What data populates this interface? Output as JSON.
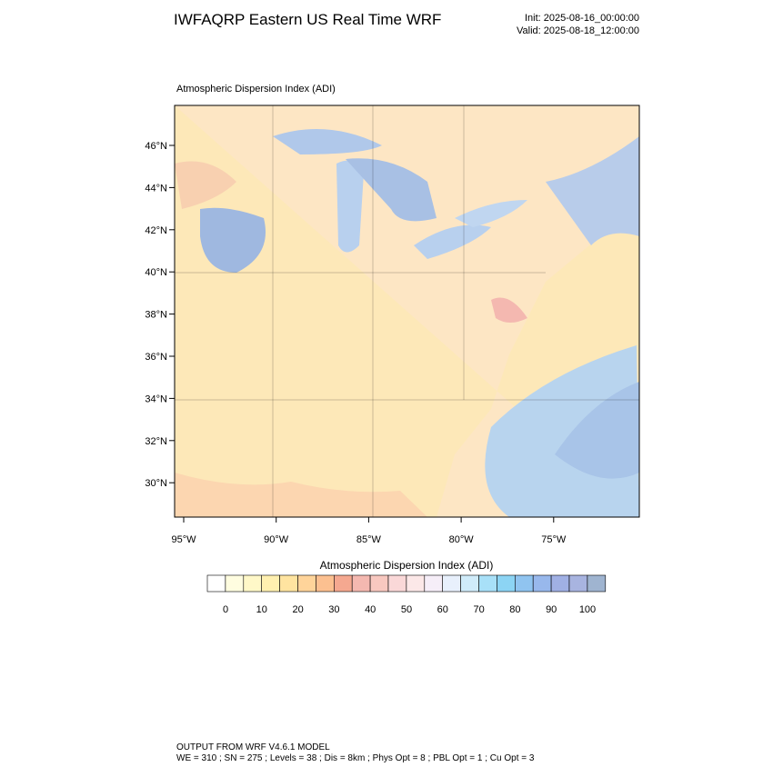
{
  "header": {
    "title": "IWFAQRP Eastern US Real Time WRF",
    "init": "Init: 2025-08-16_00:00:00",
    "valid": "Valid: 2025-08-18_12:00:00"
  },
  "map": {
    "title": "Atmospheric Dispersion Index   (ADI)",
    "lat_labels": [
      "46°N",
      "44°N",
      "42°N",
      "40°N",
      "38°N",
      "36°N",
      "34°N",
      "32°N",
      "30°N"
    ],
    "lon_labels": [
      "95°W",
      "90°W",
      "85°W",
      "80°W",
      "75°W"
    ]
  },
  "colorbar": {
    "title": "Atmospheric Dispersion Index  (ADI)",
    "colors": [
      "#ffffff",
      "#fffde0",
      "#fff8c8",
      "#fff0b0",
      "#ffe4a0",
      "#ffd49a",
      "#fcc090",
      "#f5a890",
      "#f4b8b0",
      "#f8c8c0",
      "#fad8d8",
      "#fce8e8",
      "#f6eef8",
      "#e8f0fc",
      "#d0ecfa",
      "#a8e0f8",
      "#8cd4f4",
      "#90c4f0",
      "#98b8ec",
      "#a0b0e4",
      "#a8b4e0",
      "#9fb4d0"
    ],
    "labels": [
      "0",
      "10",
      "20",
      "30",
      "40",
      "50",
      "60",
      "70",
      "80",
      "90",
      "100"
    ]
  },
  "footer": {
    "line1": "OUTPUT FROM WRF V4.6.1 MODEL",
    "line2": "WE = 310 ; SN = 275 ; Levels = 38 ; Dis = 8km ; Phys Opt = 8 ; PBL Opt = 1 ; Cu Opt = 3"
  }
}
